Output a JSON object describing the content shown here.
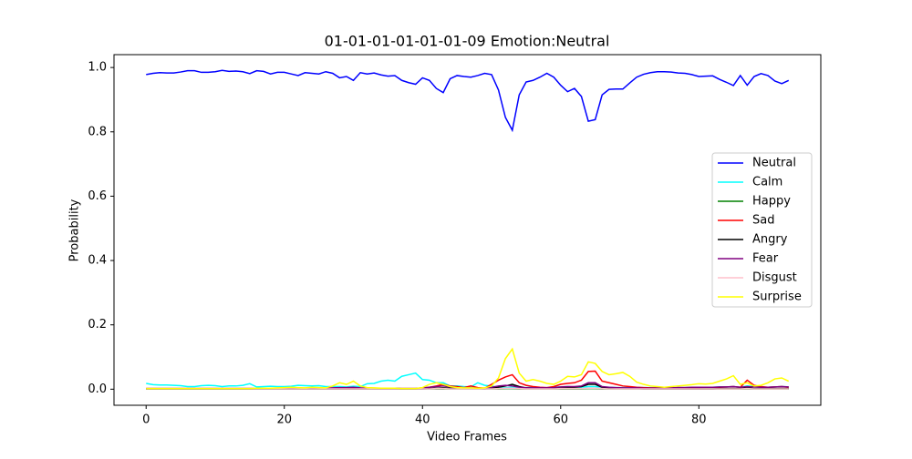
{
  "chart_data": {
    "type": "line",
    "title": "01-01-01-01-01-01-09 Emotion:Neutral",
    "x_label": "Video Frames",
    "y_label": "Probability",
    "xlim": [
      -4.65,
      97.65
    ],
    "ylim": [
      -0.05,
      1.04
    ],
    "xticks": [
      0,
      20,
      40,
      60,
      80
    ],
    "yticks": [
      {
        "value": 0,
        "label": "0.0"
      },
      0.2,
      0.4,
      0.6,
      0.8,
      {
        "value": 1,
        "label": "1.0"
      }
    ],
    "grid": false,
    "legend": "center right",
    "x": [
      0,
      1,
      2,
      3,
      4,
      5,
      6,
      7,
      8,
      9,
      10,
      11,
      12,
      13,
      14,
      15,
      16,
      17,
      18,
      19,
      20,
      21,
      22,
      23,
      24,
      25,
      26,
      27,
      28,
      29,
      30,
      31,
      32,
      33,
      34,
      35,
      36,
      37,
      38,
      39,
      40,
      41,
      42,
      43,
      44,
      45,
      46,
      47,
      48,
      49,
      50,
      51,
      52,
      53,
      54,
      55,
      56,
      57,
      58,
      59,
      60,
      61,
      62,
      63,
      64,
      65,
      66,
      67,
      68,
      69,
      70,
      71,
      72,
      73,
      74,
      75,
      76,
      77,
      78,
      79,
      80,
      81,
      82,
      83,
      84,
      85,
      86,
      87,
      88,
      89,
      90,
      91,
      92,
      93
    ],
    "series": [
      {
        "name": "Neutral",
        "color": "#0000ff",
        "values": [
          0.978,
          0.982,
          0.984,
          0.983,
          0.983,
          0.986,
          0.99,
          0.99,
          0.985,
          0.985,
          0.987,
          0.991,
          0.988,
          0.989,
          0.987,
          0.981,
          0.99,
          0.988,
          0.98,
          0.985,
          0.985,
          0.98,
          0.975,
          0.984,
          0.982,
          0.98,
          0.987,
          0.982,
          0.968,
          0.972,
          0.96,
          0.984,
          0.98,
          0.983,
          0.977,
          0.973,
          0.975,
          0.96,
          0.953,
          0.948,
          0.968,
          0.96,
          0.935,
          0.922,
          0.965,
          0.975,
          0.972,
          0.97,
          0.975,
          0.982,
          0.978,
          0.93,
          0.845,
          0.805,
          0.915,
          0.955,
          0.96,
          0.97,
          0.982,
          0.97,
          0.945,
          0.925,
          0.935,
          0.91,
          0.833,
          0.838,
          0.915,
          0.932,
          0.933,
          0.933,
          0.952,
          0.97,
          0.979,
          0.984,
          0.987,
          0.987,
          0.986,
          0.983,
          0.982,
          0.978,
          0.972,
          0.973,
          0.974,
          0.963,
          0.954,
          0.944,
          0.975,
          0.945,
          0.972,
          0.981,
          0.975,
          0.958,
          0.95,
          0.96
        ]
      },
      {
        "name": "Calm",
        "color": "#00ffff",
        "values": [
          0.018,
          0.014,
          0.013,
          0.013,
          0.012,
          0.011,
          0.008,
          0.008,
          0.011,
          0.012,
          0.011,
          0.008,
          0.01,
          0.01,
          0.012,
          0.017,
          0.007,
          0.008,
          0.009,
          0.008,
          0.008,
          0.009,
          0.012,
          0.011,
          0.01,
          0.011,
          0.008,
          0.008,
          0.008,
          0.007,
          0.009,
          0.008,
          0.017,
          0.018,
          0.025,
          0.028,
          0.025,
          0.04,
          0.045,
          0.05,
          0.03,
          0.028,
          0.02,
          0.02,
          0.01,
          0.01,
          0.008,
          0.007,
          0.02,
          0.012,
          0.01,
          0.005,
          0.005,
          0.006,
          0.005,
          0.005,
          0.006,
          0.005,
          0.005,
          0.006,
          0.007,
          0.008,
          0.007,
          0.006,
          0.008,
          0.008,
          0.006,
          0.006,
          0.005,
          0.005,
          0.006,
          0.006,
          0.005,
          0.005,
          0.005,
          0.004,
          0.004,
          0.005,
          0.005,
          0.006,
          0.006,
          0.006,
          0.006,
          0.007,
          0.007,
          0.008,
          0.006,
          0.01,
          0.008,
          0.006,
          0.006,
          0.007,
          0.008,
          0.007
        ]
      },
      {
        "name": "Happy",
        "color": "#008000",
        "values": [
          0.001,
          0.001,
          0.001,
          0.001,
          0.001,
          0.001,
          0.001,
          0.001,
          0.001,
          0.001,
          0.001,
          0.001,
          0.001,
          0.001,
          0.001,
          0.001,
          0.001,
          0.001,
          0.001,
          0.001,
          0.001,
          0.001,
          0.001,
          0.001,
          0.001,
          0.001,
          0.001,
          0.001,
          0.001,
          0.001,
          0.001,
          0.001,
          0.001,
          0.001,
          0.001,
          0.001,
          0.001,
          0.001,
          0.001,
          0.001,
          0.001,
          0.001,
          0.001,
          0.001,
          0.001,
          0.001,
          0.001,
          0.001,
          0.001,
          0.001,
          0.001,
          0.001,
          0.002,
          0.002,
          0.001,
          0.001,
          0.001,
          0.001,
          0.001,
          0.001,
          0.001,
          0.001,
          0.001,
          0.001,
          0.002,
          0.002,
          0.001,
          0.001,
          0.001,
          0.001,
          0.001,
          0.001,
          0.001,
          0.001,
          0.001,
          0.001,
          0.001,
          0.001,
          0.001,
          0.001,
          0.001,
          0.001,
          0.001,
          0.001,
          0.001,
          0.001,
          0.001,
          0.001,
          0.001,
          0.001,
          0.001,
          0.001,
          0.001,
          0.001
        ]
      },
      {
        "name": "Sad",
        "color": "#ff0000",
        "values": [
          0.002,
          0.002,
          0.002,
          0.002,
          0.002,
          0.002,
          0.002,
          0.002,
          0.002,
          0.002,
          0.002,
          0.002,
          0.002,
          0.002,
          0.002,
          0.002,
          0.002,
          0.002,
          0.002,
          0.002,
          0.002,
          0.003,
          0.003,
          0.002,
          0.002,
          0.002,
          0.002,
          0.003,
          0.003,
          0.003,
          0.004,
          0.003,
          0.002,
          0.002,
          0.002,
          0.002,
          0.002,
          0.002,
          0.002,
          0.002,
          0.003,
          0.006,
          0.01,
          0.015,
          0.01,
          0.008,
          0.005,
          0.01,
          0.005,
          0.003,
          0.015,
          0.028,
          0.038,
          0.045,
          0.02,
          0.012,
          0.008,
          0.006,
          0.005,
          0.008,
          0.015,
          0.018,
          0.02,
          0.028,
          0.055,
          0.056,
          0.025,
          0.02,
          0.015,
          0.01,
          0.008,
          0.006,
          0.005,
          0.004,
          0.004,
          0.004,
          0.004,
          0.005,
          0.005,
          0.005,
          0.005,
          0.006,
          0.006,
          0.006,
          0.007,
          0.008,
          0.006,
          0.028,
          0.012,
          0.008,
          0.006,
          0.007,
          0.008,
          0.006
        ]
      },
      {
        "name": "Angry",
        "color": "#000000",
        "values": [
          0.001,
          0.001,
          0.001,
          0.001,
          0.001,
          0.001,
          0.001,
          0.001,
          0.001,
          0.001,
          0.001,
          0.001,
          0.001,
          0.001,
          0.001,
          0.001,
          0.001,
          0.001,
          0.001,
          0.001,
          0.001,
          0.001,
          0.001,
          0.001,
          0.001,
          0.001,
          0.001,
          0.001,
          0.001,
          0.001,
          0.001,
          0.001,
          0.001,
          0.001,
          0.001,
          0.001,
          0.001,
          0.001,
          0.001,
          0.001,
          0.001,
          0.002,
          0.003,
          0.004,
          0.003,
          0.002,
          0.002,
          0.002,
          0.002,
          0.001,
          0.003,
          0.006,
          0.01,
          0.015,
          0.008,
          0.004,
          0.003,
          0.002,
          0.002,
          0.002,
          0.004,
          0.006,
          0.006,
          0.008,
          0.015,
          0.015,
          0.006,
          0.004,
          0.003,
          0.002,
          0.002,
          0.002,
          0.001,
          0.001,
          0.001,
          0.001,
          0.001,
          0.001,
          0.001,
          0.001,
          0.001,
          0.001,
          0.001,
          0.002,
          0.002,
          0.002,
          0.002,
          0.004,
          0.002,
          0.002,
          0.002,
          0.002,
          0.002,
          0.002
        ]
      },
      {
        "name": "Fear",
        "color": "#800080",
        "values": [
          0.002,
          0.002,
          0.002,
          0.002,
          0.002,
          0.002,
          0.002,
          0.002,
          0.002,
          0.002,
          0.002,
          0.002,
          0.002,
          0.002,
          0.002,
          0.002,
          0.002,
          0.002,
          0.002,
          0.002,
          0.002,
          0.002,
          0.002,
          0.002,
          0.002,
          0.003,
          0.003,
          0.004,
          0.005,
          0.005,
          0.006,
          0.004,
          0.003,
          0.003,
          0.003,
          0.003,
          0.003,
          0.002,
          0.002,
          0.002,
          0.004,
          0.006,
          0.008,
          0.01,
          0.007,
          0.005,
          0.004,
          0.004,
          0.003,
          0.003,
          0.006,
          0.01,
          0.012,
          0.01,
          0.006,
          0.004,
          0.004,
          0.004,
          0.004,
          0.005,
          0.007,
          0.008,
          0.008,
          0.01,
          0.02,
          0.02,
          0.008,
          0.006,
          0.005,
          0.004,
          0.004,
          0.004,
          0.003,
          0.003,
          0.003,
          0.004,
          0.004,
          0.005,
          0.005,
          0.006,
          0.006,
          0.006,
          0.006,
          0.007,
          0.007,
          0.008,
          0.006,
          0.008,
          0.007,
          0.006,
          0.006,
          0.007,
          0.008,
          0.007
        ]
      },
      {
        "name": "Disgust",
        "color": "#ffc0cb",
        "values": [
          0.001,
          0.001,
          0.001,
          0.001,
          0.001,
          0.001,
          0.001,
          0.001,
          0.001,
          0.001,
          0.001,
          0.001,
          0.001,
          0.001,
          0.001,
          0.001,
          0.001,
          0.001,
          0.001,
          0.001,
          0.001,
          0.001,
          0.001,
          0.001,
          0.001,
          0.001,
          0.001,
          0.001,
          0.001,
          0.001,
          0.001,
          0.001,
          0.001,
          0.001,
          0.001,
          0.001,
          0.001,
          0.001,
          0.001,
          0.001,
          0.001,
          0.001,
          0.002,
          0.002,
          0.001,
          0.001,
          0.001,
          0.001,
          0.001,
          0.001,
          0.001,
          0.002,
          0.003,
          0.003,
          0.002,
          0.001,
          0.001,
          0.001,
          0.001,
          0.001,
          0.002,
          0.002,
          0.002,
          0.002,
          0.003,
          0.003,
          0.002,
          0.001,
          0.001,
          0.001,
          0.001,
          0.001,
          0.001,
          0.001,
          0.001,
          0.001,
          0.001,
          0.001,
          0.001,
          0.001,
          0.001,
          0.001,
          0.001,
          0.001,
          0.001,
          0.001,
          0.001,
          0.002,
          0.001,
          0.001,
          0.001,
          0.001,
          0.001,
          0.001
        ]
      },
      {
        "name": "Surprise",
        "color": "#ffff00",
        "values": [
          0.002,
          0.002,
          0.002,
          0.002,
          0.002,
          0.002,
          0.002,
          0.002,
          0.002,
          0.002,
          0.002,
          0.002,
          0.002,
          0.002,
          0.002,
          0.002,
          0.003,
          0.003,
          0.003,
          0.004,
          0.005,
          0.006,
          0.005,
          0.004,
          0.006,
          0.005,
          0.004,
          0.01,
          0.02,
          0.015,
          0.025,
          0.01,
          0.005,
          0.004,
          0.003,
          0.003,
          0.003,
          0.002,
          0.002,
          0.002,
          0.005,
          0.015,
          0.02,
          0.015,
          0.008,
          0.005,
          0.004,
          0.004,
          0.003,
          0.004,
          0.01,
          0.035,
          0.095,
          0.125,
          0.05,
          0.025,
          0.03,
          0.025,
          0.018,
          0.015,
          0.025,
          0.04,
          0.038,
          0.045,
          0.085,
          0.08,
          0.055,
          0.045,
          0.048,
          0.052,
          0.04,
          0.022,
          0.015,
          0.01,
          0.008,
          0.006,
          0.008,
          0.01,
          0.012,
          0.014,
          0.017,
          0.016,
          0.018,
          0.025,
          0.032,
          0.042,
          0.015,
          0.02,
          0.01,
          0.012,
          0.02,
          0.032,
          0.035,
          0.025
        ]
      }
    ]
  }
}
